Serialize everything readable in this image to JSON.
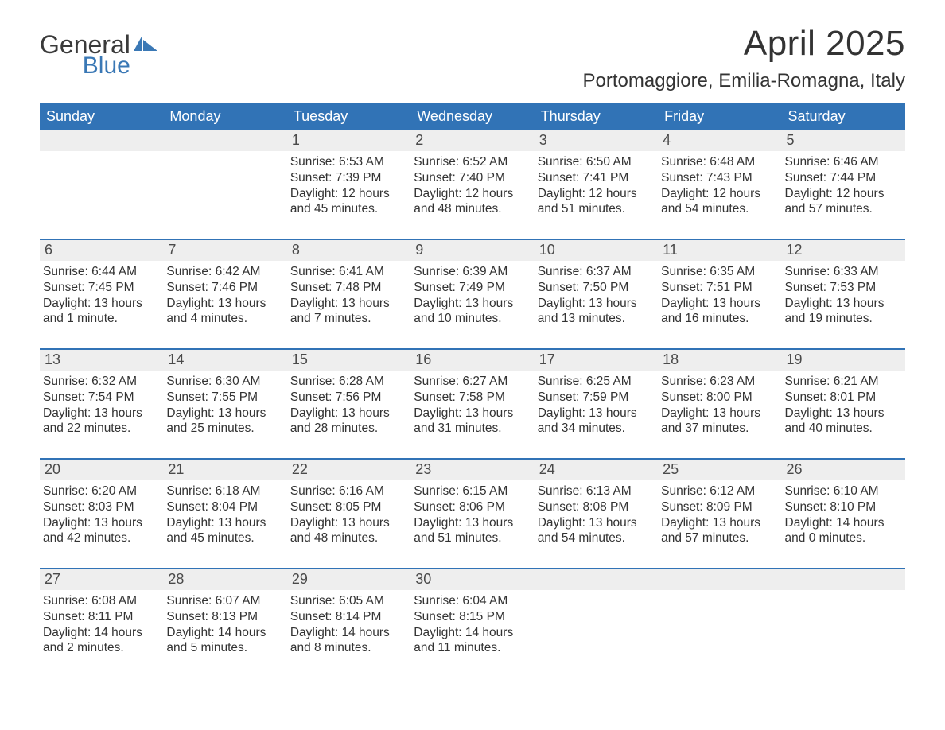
{
  "logo": {
    "general": "General",
    "blue": "Blue"
  },
  "title": "April 2025",
  "location": "Portomaggiore, Emilia-Romagna, Italy",
  "colors": {
    "header_bg": "#3173b6",
    "header_text": "#ffffff",
    "daynum_bg": "#eeeeee",
    "daynum_text": "#4a4a4a",
    "body_text": "#333333",
    "row_border": "#3173b6",
    "logo_blue": "#3a78b5",
    "logo_gray": "#3a3a3a",
    "page_bg": "#ffffff"
  },
  "typography": {
    "title_fontsize": 44,
    "location_fontsize": 24,
    "header_fontsize": 18,
    "daynum_fontsize": 18,
    "body_fontsize": 15.5,
    "font_family": "Arial"
  },
  "day_headers": [
    "Sunday",
    "Monday",
    "Tuesday",
    "Wednesday",
    "Thursday",
    "Friday",
    "Saturday"
  ],
  "weeks": [
    [
      {
        "day": "",
        "sunrise": "",
        "sunset": "",
        "daylight": ""
      },
      {
        "day": "",
        "sunrise": "",
        "sunset": "",
        "daylight": ""
      },
      {
        "day": "1",
        "sunrise": "Sunrise: 6:53 AM",
        "sunset": "Sunset: 7:39 PM",
        "daylight": "Daylight: 12 hours and 45 minutes."
      },
      {
        "day": "2",
        "sunrise": "Sunrise: 6:52 AM",
        "sunset": "Sunset: 7:40 PM",
        "daylight": "Daylight: 12 hours and 48 minutes."
      },
      {
        "day": "3",
        "sunrise": "Sunrise: 6:50 AM",
        "sunset": "Sunset: 7:41 PM",
        "daylight": "Daylight: 12 hours and 51 minutes."
      },
      {
        "day": "4",
        "sunrise": "Sunrise: 6:48 AM",
        "sunset": "Sunset: 7:43 PM",
        "daylight": "Daylight: 12 hours and 54 minutes."
      },
      {
        "day": "5",
        "sunrise": "Sunrise: 6:46 AM",
        "sunset": "Sunset: 7:44 PM",
        "daylight": "Daylight: 12 hours and 57 minutes."
      }
    ],
    [
      {
        "day": "6",
        "sunrise": "Sunrise: 6:44 AM",
        "sunset": "Sunset: 7:45 PM",
        "daylight": "Daylight: 13 hours and 1 minute."
      },
      {
        "day": "7",
        "sunrise": "Sunrise: 6:42 AM",
        "sunset": "Sunset: 7:46 PM",
        "daylight": "Daylight: 13 hours and 4 minutes."
      },
      {
        "day": "8",
        "sunrise": "Sunrise: 6:41 AM",
        "sunset": "Sunset: 7:48 PM",
        "daylight": "Daylight: 13 hours and 7 minutes."
      },
      {
        "day": "9",
        "sunrise": "Sunrise: 6:39 AM",
        "sunset": "Sunset: 7:49 PM",
        "daylight": "Daylight: 13 hours and 10 minutes."
      },
      {
        "day": "10",
        "sunrise": "Sunrise: 6:37 AM",
        "sunset": "Sunset: 7:50 PM",
        "daylight": "Daylight: 13 hours and 13 minutes."
      },
      {
        "day": "11",
        "sunrise": "Sunrise: 6:35 AM",
        "sunset": "Sunset: 7:51 PM",
        "daylight": "Daylight: 13 hours and 16 minutes."
      },
      {
        "day": "12",
        "sunrise": "Sunrise: 6:33 AM",
        "sunset": "Sunset: 7:53 PM",
        "daylight": "Daylight: 13 hours and 19 minutes."
      }
    ],
    [
      {
        "day": "13",
        "sunrise": "Sunrise: 6:32 AM",
        "sunset": "Sunset: 7:54 PM",
        "daylight": "Daylight: 13 hours and 22 minutes."
      },
      {
        "day": "14",
        "sunrise": "Sunrise: 6:30 AM",
        "sunset": "Sunset: 7:55 PM",
        "daylight": "Daylight: 13 hours and 25 minutes."
      },
      {
        "day": "15",
        "sunrise": "Sunrise: 6:28 AM",
        "sunset": "Sunset: 7:56 PM",
        "daylight": "Daylight: 13 hours and 28 minutes."
      },
      {
        "day": "16",
        "sunrise": "Sunrise: 6:27 AM",
        "sunset": "Sunset: 7:58 PM",
        "daylight": "Daylight: 13 hours and 31 minutes."
      },
      {
        "day": "17",
        "sunrise": "Sunrise: 6:25 AM",
        "sunset": "Sunset: 7:59 PM",
        "daylight": "Daylight: 13 hours and 34 minutes."
      },
      {
        "day": "18",
        "sunrise": "Sunrise: 6:23 AM",
        "sunset": "Sunset: 8:00 PM",
        "daylight": "Daylight: 13 hours and 37 minutes."
      },
      {
        "day": "19",
        "sunrise": "Sunrise: 6:21 AM",
        "sunset": "Sunset: 8:01 PM",
        "daylight": "Daylight: 13 hours and 40 minutes."
      }
    ],
    [
      {
        "day": "20",
        "sunrise": "Sunrise: 6:20 AM",
        "sunset": "Sunset: 8:03 PM",
        "daylight": "Daylight: 13 hours and 42 minutes."
      },
      {
        "day": "21",
        "sunrise": "Sunrise: 6:18 AM",
        "sunset": "Sunset: 8:04 PM",
        "daylight": "Daylight: 13 hours and 45 minutes."
      },
      {
        "day": "22",
        "sunrise": "Sunrise: 6:16 AM",
        "sunset": "Sunset: 8:05 PM",
        "daylight": "Daylight: 13 hours and 48 minutes."
      },
      {
        "day": "23",
        "sunrise": "Sunrise: 6:15 AM",
        "sunset": "Sunset: 8:06 PM",
        "daylight": "Daylight: 13 hours and 51 minutes."
      },
      {
        "day": "24",
        "sunrise": "Sunrise: 6:13 AM",
        "sunset": "Sunset: 8:08 PM",
        "daylight": "Daylight: 13 hours and 54 minutes."
      },
      {
        "day": "25",
        "sunrise": "Sunrise: 6:12 AM",
        "sunset": "Sunset: 8:09 PM",
        "daylight": "Daylight: 13 hours and 57 minutes."
      },
      {
        "day": "26",
        "sunrise": "Sunrise: 6:10 AM",
        "sunset": "Sunset: 8:10 PM",
        "daylight": "Daylight: 14 hours and 0 minutes."
      }
    ],
    [
      {
        "day": "27",
        "sunrise": "Sunrise: 6:08 AM",
        "sunset": "Sunset: 8:11 PM",
        "daylight": "Daylight: 14 hours and 2 minutes."
      },
      {
        "day": "28",
        "sunrise": "Sunrise: 6:07 AM",
        "sunset": "Sunset: 8:13 PM",
        "daylight": "Daylight: 14 hours and 5 minutes."
      },
      {
        "day": "29",
        "sunrise": "Sunrise: 6:05 AM",
        "sunset": "Sunset: 8:14 PM",
        "daylight": "Daylight: 14 hours and 8 minutes."
      },
      {
        "day": "30",
        "sunrise": "Sunrise: 6:04 AM",
        "sunset": "Sunset: 8:15 PM",
        "daylight": "Daylight: 14 hours and 11 minutes."
      },
      {
        "day": "",
        "sunrise": "",
        "sunset": "",
        "daylight": ""
      },
      {
        "day": "",
        "sunrise": "",
        "sunset": "",
        "daylight": ""
      },
      {
        "day": "",
        "sunrise": "",
        "sunset": "",
        "daylight": ""
      }
    ]
  ]
}
